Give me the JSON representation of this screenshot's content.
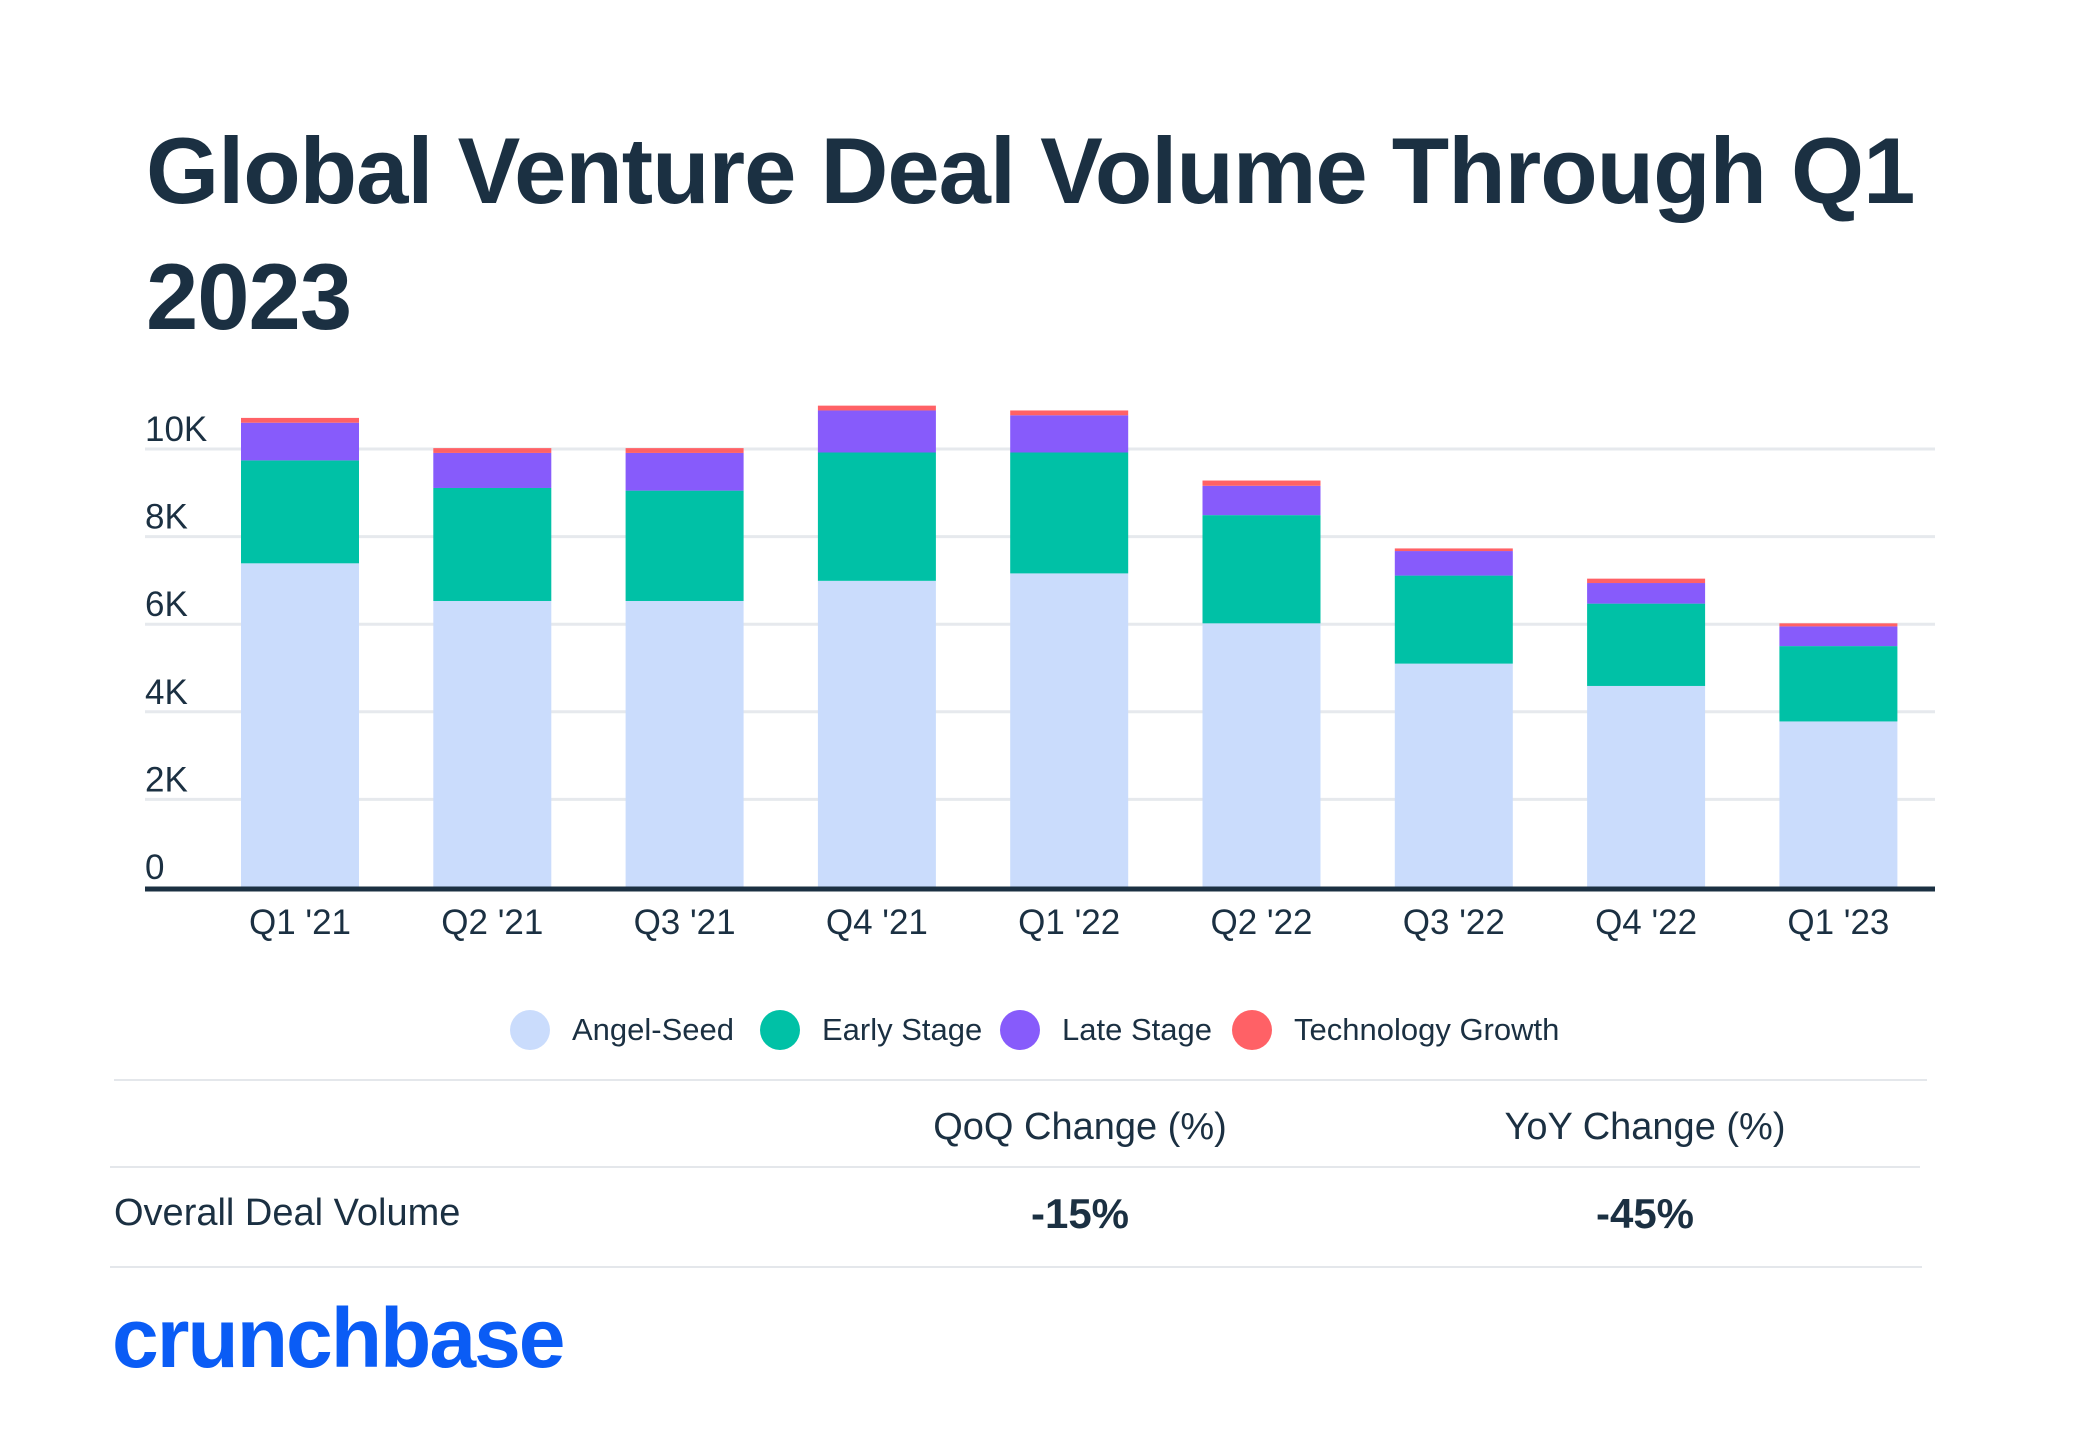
{
  "title": "Global Venture Deal Volume Through Q1 2023",
  "chart_data": {
    "type": "bar",
    "stacked": true,
    "categories": [
      "Q1 '21",
      "Q2 '21",
      "Q3 '21",
      "Q4 '21",
      "Q1 '22",
      "Q2 '22",
      "Q3 '22",
      "Q4 '22",
      "Q1 '23"
    ],
    "series": [
      {
        "name": "Angel-Seed",
        "color": "#cadcfc",
        "values": [
          7390,
          6530,
          6530,
          6990,
          7160,
          6020,
          5100,
          4590,
          3780
        ]
      },
      {
        "name": "Early Stage",
        "color": "#00c1a6",
        "values": [
          2350,
          2580,
          2520,
          2930,
          2760,
          2470,
          2010,
          1880,
          1720
        ]
      },
      {
        "name": "Late Stage",
        "color": "#875bfb",
        "values": [
          860,
          800,
          860,
          960,
          850,
          670,
          560,
          470,
          450
        ]
      },
      {
        "name": "Technology Growth",
        "color": "#ff6166",
        "values": [
          110,
          110,
          110,
          110,
          110,
          120,
          60,
          100,
          70
        ]
      }
    ],
    "yticks": [
      0,
      2000,
      4000,
      6000,
      8000,
      10000
    ],
    "ytick_labels": [
      "0",
      "2K",
      "4K",
      "6K",
      "8K",
      "10K"
    ],
    "ylim": [
      0,
      10000
    ],
    "grid": true,
    "legend": "bottom"
  },
  "table": {
    "headers": [
      "QoQ Change (%)",
      "YoY Change (%)"
    ],
    "row_label": "Overall Deal Volume",
    "values": [
      "-15%",
      "-45%"
    ]
  },
  "logo": "crunchbase"
}
